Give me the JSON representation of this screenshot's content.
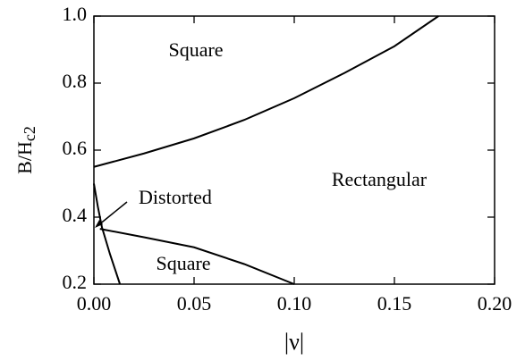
{
  "chart_data": {
    "type": "line",
    "xlabel": "|ν|",
    "ylabel": [
      "B/H",
      "c2"
    ],
    "xlim": [
      0,
      0.2
    ],
    "ylim": [
      0.2,
      1
    ],
    "xticks": [
      {
        "value": 0,
        "label": "0.00"
      },
      0.05,
      {
        "value": 0.1,
        "label": "0.10"
      },
      0.15,
      {
        "value": 0.2,
        "label": "0.20"
      }
    ],
    "yticks": [
      0.2,
      0.4,
      0.6,
      0.8,
      {
        "value": 1,
        "label": "1.0"
      }
    ],
    "annotations": [
      "Square",
      "Rectangular",
      "Distorted",
      "Square"
    ],
    "series": [
      {
        "color": "#000000",
        "x": [
          0,
          0.025,
          0.05,
          0.075,
          0.1,
          0.125,
          0.15,
          0.172
        ],
        "values": [
          0.55,
          0.59,
          0.635,
          0.69,
          0.755,
          0.83,
          0.91,
          1.0
        ]
      },
      {
        "color": "#000000",
        "x": [
          0.003,
          0.025,
          0.05,
          0.075,
          0.1
        ],
        "values": [
          0.365,
          0.34,
          0.31,
          0.26,
          0.2
        ]
      },
      {
        "color": "#000000",
        "x": [
          0,
          0.002,
          0.004,
          0.008,
          0.013
        ],
        "values": [
          0.5,
          0.43,
          0.37,
          0.29,
          0.2
        ]
      }
    ]
  }
}
